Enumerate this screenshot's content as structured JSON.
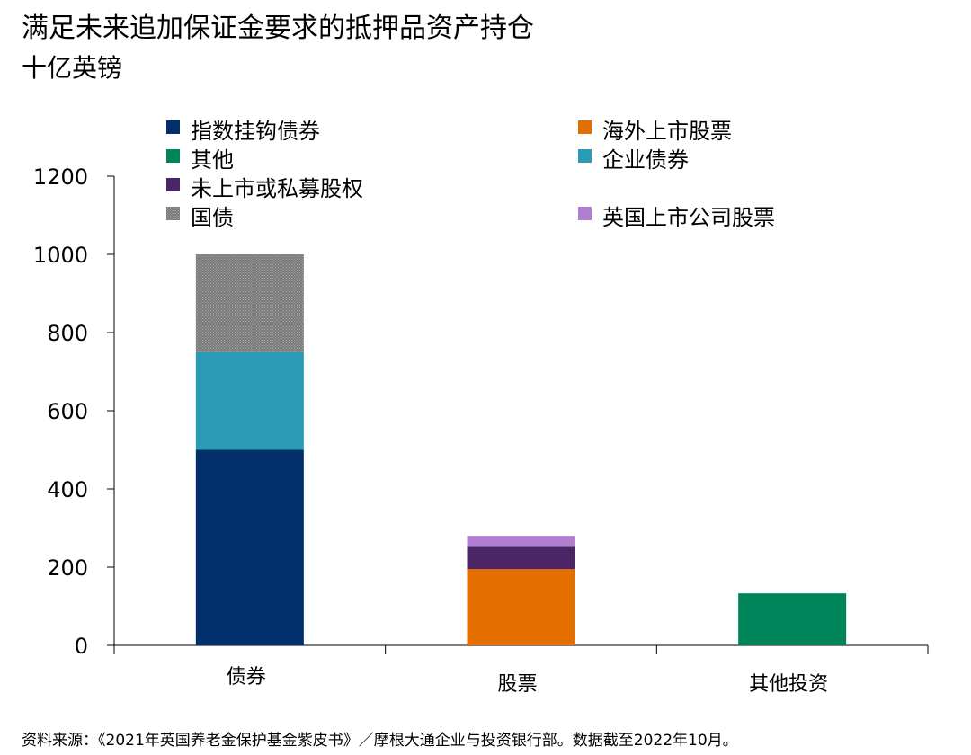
{
  "title": "满足未来追加保证金要求的抵押品资产持仓",
  "subtitle": "十亿英镑",
  "source": "资料来源：《2021年英国养老金保护基金紫皮书》／摩根大通企业与投资银行部。数据截至2022年10月。",
  "chart_data": {
    "type": "bar",
    "stacked": true,
    "categories": [
      "债券",
      "股票",
      "其他投资"
    ],
    "ylim": [
      0,
      1200
    ],
    "yticks": [
      0,
      200,
      400,
      600,
      800,
      1000,
      1200
    ],
    "legend_placement": "top",
    "grid": false,
    "series": [
      {
        "name": "指数挂钩债券",
        "color": "#002f6c",
        "values": [
          500,
          0,
          0
        ]
      },
      {
        "name": "企业债券",
        "color": "#2a9ab5",
        "values": [
          250,
          0,
          0
        ]
      },
      {
        "name": "国债",
        "color": "#8c8c8c",
        "pattern": true,
        "values": [
          250,
          0,
          0
        ]
      },
      {
        "name": "海外上市股票",
        "color": "#e56e00",
        "values": [
          0,
          195,
          0
        ]
      },
      {
        "name": "未上市或私募股权",
        "color": "#4b2566",
        "values": [
          0,
          57,
          0
        ]
      },
      {
        "name": "英国上市公司股票",
        "color": "#b07fd0",
        "values": [
          0,
          28,
          0
        ]
      },
      {
        "name": "其他",
        "color": "#00845a",
        "values": [
          0,
          0,
          133
        ]
      }
    ],
    "legend_order": [
      "指数挂钩债券",
      "海外上市股票",
      "其他",
      "企业债券",
      "未上市或私募股权",
      "国债",
      "英国上市公司股票"
    ]
  }
}
